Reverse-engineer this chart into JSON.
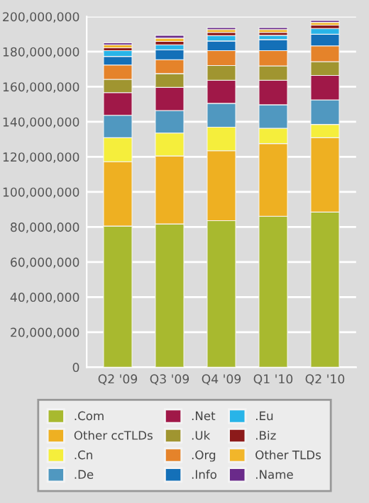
{
  "chart_data": {
    "type": "bar",
    "stacked": true,
    "categories": [
      "Q2 '09",
      "Q3 '09",
      "Q4 '09",
      "Q1 '10",
      "Q2 '10"
    ],
    "series": [
      {
        "name": ".Com",
        "color": "#a8b92f",
        "values": [
          80500000,
          81700000,
          83600000,
          86100000,
          88500000
        ]
      },
      {
        "name": "Other ccTLDs",
        "color": "#eeb022",
        "values": [
          36700000,
          38800000,
          39900000,
          41500000,
          42400000
        ]
      },
      {
        "name": ".Cn",
        "color": "#f5ee3c",
        "values": [
          13700000,
          13100000,
          13400000,
          8700000,
          7600000
        ]
      },
      {
        "name": ".De",
        "color": "#5098c0",
        "values": [
          12800000,
          12800000,
          13600000,
          13400000,
          14000000
        ]
      },
      {
        "name": ".Net",
        "color": "#a01848",
        "values": [
          12900000,
          13200000,
          13200000,
          14000000,
          13900000
        ]
      },
      {
        "name": ".Uk",
        "color": "#a09530",
        "values": [
          7600000,
          7900000,
          8400000,
          8200000,
          7900000
        ]
      },
      {
        "name": ".Org",
        "color": "#e5832a",
        "values": [
          8200000,
          7900000,
          8500000,
          8700000,
          9000000
        ]
      },
      {
        "name": ".Info",
        "color": "#1470b8",
        "values": [
          4900000,
          5700000,
          5500000,
          6300000,
          6600000
        ]
      },
      {
        "name": ".Eu",
        "color": "#28b4e8",
        "values": [
          3300000,
          2800000,
          3000000,
          2400000,
          3300000
        ]
      },
      {
        "name": ".Biz",
        "color": "#8c1a1a",
        "values": [
          1600000,
          1900000,
          1900000,
          1700000,
          1900000
        ]
      },
      {
        "name": "Other TLDs",
        "color": "#f2b62a",
        "values": [
          1700000,
          1900000,
          1600000,
          1600000,
          1600000
        ]
      },
      {
        "name": ".Name",
        "color": "#6a2a8a",
        "values": [
          1100000,
          1600000,
          1100000,
          1100000,
          1100000
        ]
      }
    ],
    "ylim": [
      0,
      200000000
    ],
    "yticks": [
      0,
      {
        "value": 20000000,
        "label": "20,000,000"
      },
      {
        "value": 40000000,
        "label": "40,000,000"
      },
      {
        "value": 60000000,
        "label": "60,000,000"
      },
      {
        "value": 80000000,
        "label": "80,000,000"
      },
      {
        "value": 100000000,
        "label": "100,000,000"
      },
      {
        "value": 120000000,
        "label": "120,000,000"
      },
      {
        "value": 140000000,
        "label": "140,000,000"
      },
      {
        "value": 160000000,
        "label": "160,000,000"
      },
      {
        "value": 180000000,
        "label": "180,000,000"
      },
      {
        "value": 200000000,
        "label": "200,000,000"
      }
    ],
    "grid": "y",
    "legend": "bottom"
  }
}
